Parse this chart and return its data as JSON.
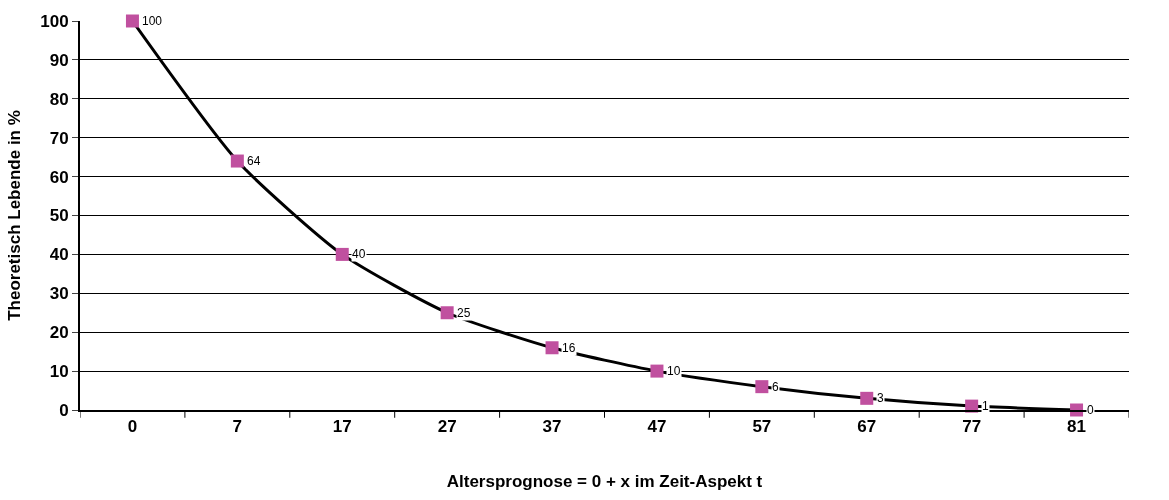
{
  "chart_data": {
    "type": "line",
    "xlabel": "Altersprognose = 0 + x im Zeit-Aspekt t",
    "ylabel": "Theoretisch Lebende in %",
    "categories": [
      "0",
      "7",
      "17",
      "27",
      "37",
      "47",
      "57",
      "67",
      "77",
      "81"
    ],
    "series": [
      {
        "color": "#c0509f",
        "values": [
          100,
          64,
          40,
          25,
          16,
          10,
          6,
          3,
          1,
          0
        ]
      }
    ],
    "ylim": [
      0,
      100
    ],
    "yticks": [
      0,
      10,
      20,
      30,
      40,
      50,
      60,
      70,
      80,
      90,
      100
    ],
    "grid": "y",
    "marker": "square",
    "line_style": "solid",
    "data_labels": true
  }
}
